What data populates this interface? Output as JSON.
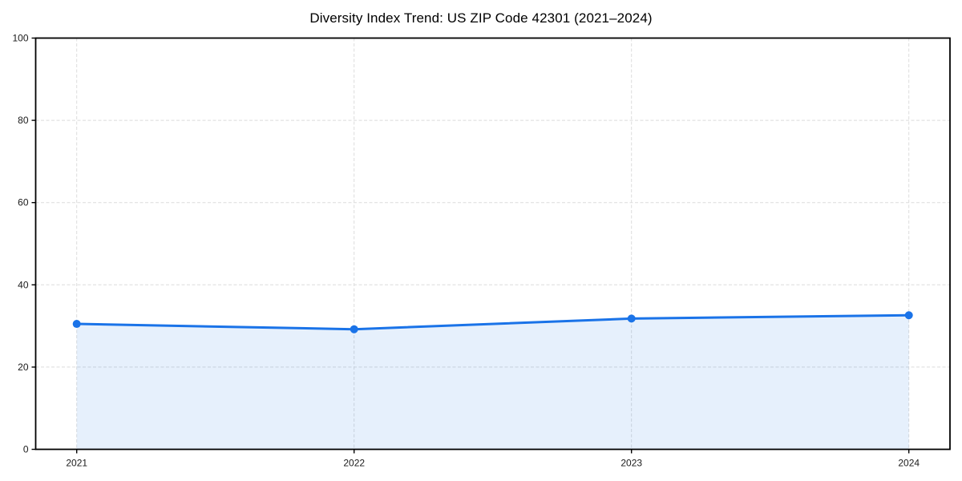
{
  "chart_data": {
    "type": "area",
    "title": "Diversity Index Trend: US ZIP Code 42301 (2021–2024)",
    "series_name": "Diversity Index",
    "categories": [
      "2021",
      "2022",
      "2023",
      "2024"
    ],
    "values": [
      30.5,
      29.2,
      31.8,
      32.6
    ],
    "xlabel": "",
    "ylabel": "",
    "ylim": [
      0,
      100
    ],
    "yticks": [
      0,
      20,
      40,
      60,
      80,
      100
    ],
    "grid": true,
    "grid_style": "dashed",
    "legend_position": "none",
    "colors": {
      "line": "#1a73e8",
      "marker": "#1a73e8",
      "fill": "#1a73e8",
      "grid": "#dcdcdc",
      "spine": "#000000",
      "tick_text": "#1a1a1a"
    },
    "fill_opacity": 0.11
  }
}
